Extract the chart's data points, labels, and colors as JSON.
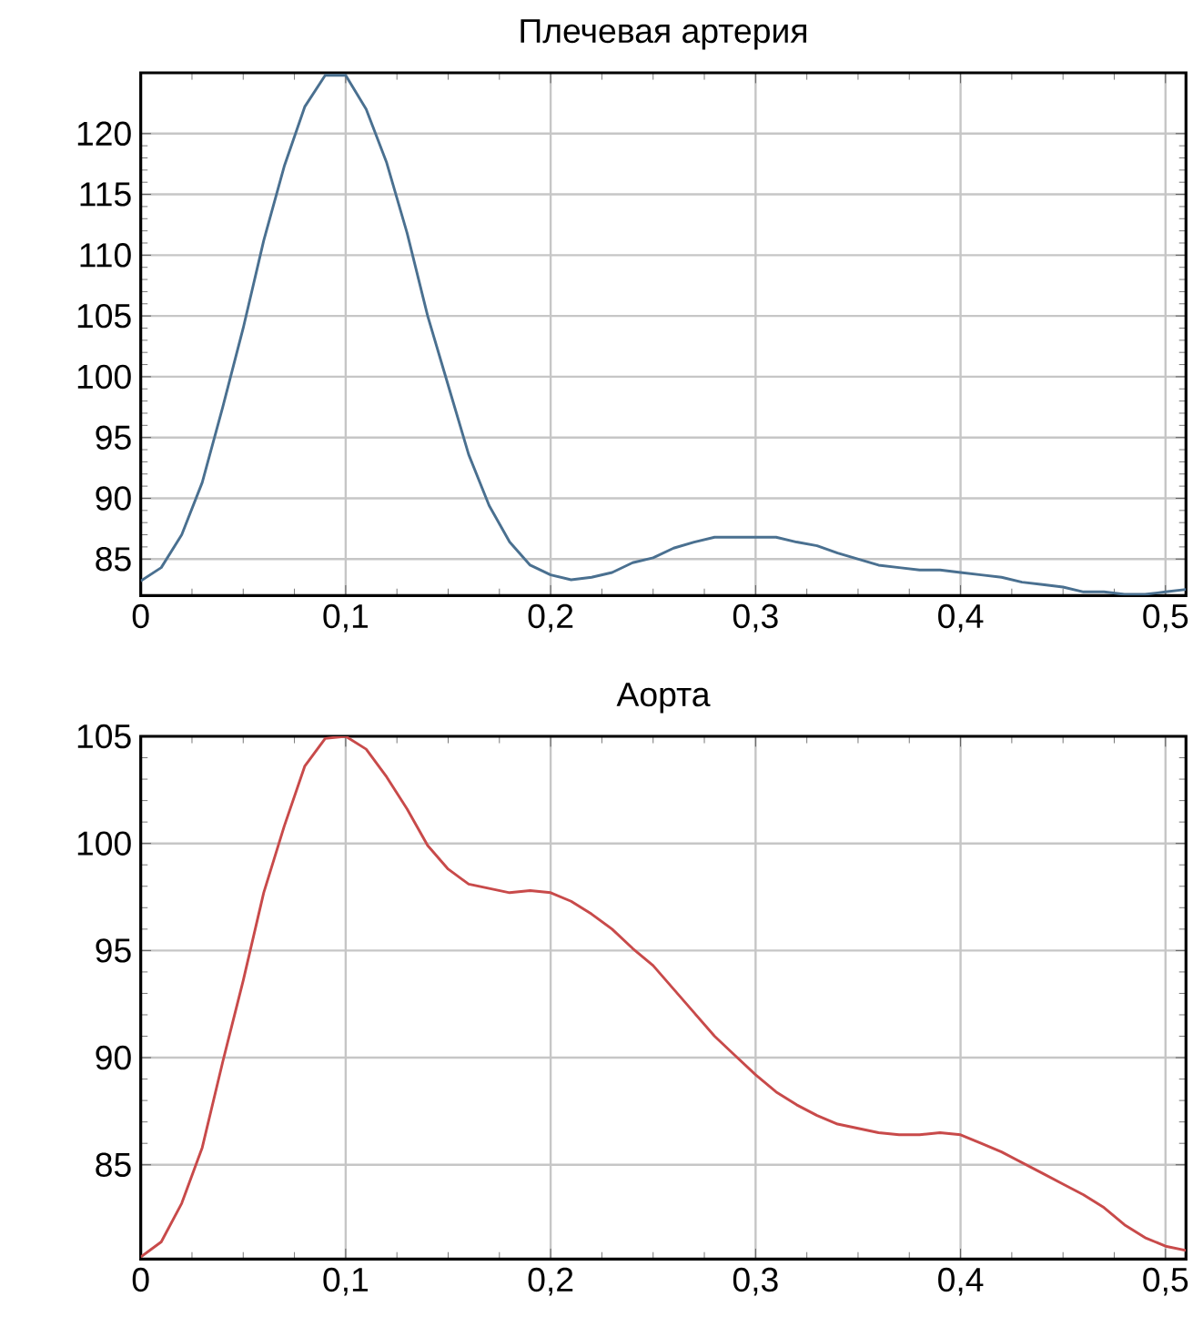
{
  "chart_data": [
    {
      "type": "line",
      "title": "Плечевая артерия",
      "grid": true,
      "marker": "none",
      "x": [
        0,
        0.01,
        0.02,
        0.03,
        0.04,
        0.05,
        0.06,
        0.07,
        0.08,
        0.09,
        0.1,
        0.11,
        0.12,
        0.13,
        0.14,
        0.15,
        0.16,
        0.17,
        0.18,
        0.19,
        0.2,
        0.21,
        0.22,
        0.23,
        0.24,
        0.25,
        0.26,
        0.27,
        0.28,
        0.29,
        0.3,
        0.31,
        0.32,
        0.33,
        0.34,
        0.35,
        0.36,
        0.37,
        0.38,
        0.39,
        0.4,
        0.41,
        0.42,
        0.43,
        0.44,
        0.45,
        0.46,
        0.47,
        0.48,
        0.49,
        0.5,
        0.51
      ],
      "series": [
        {
          "color": "#4a7090",
          "values": [
            83.2,
            84.3,
            87,
            91.3,
            97.5,
            104,
            111.2,
            117.3,
            122.2,
            124.8,
            124.8,
            122,
            117.6,
            111.8,
            105,
            99.3,
            93.6,
            89.4,
            86.4,
            84.5,
            83.7,
            83.3,
            83.5,
            83.9,
            84.7,
            85.1,
            85.9,
            86.4,
            86.8,
            86.8,
            86.8,
            86.8,
            86.4,
            86.1,
            85.5,
            85,
            84.5,
            84.3,
            84.1,
            84.1,
            83.9,
            83.7,
            83.5,
            83.1,
            82.9,
            82.7,
            82.3,
            82.3,
            82.1,
            82.1,
            82.3,
            82.5
          ]
        }
      ],
      "xlim": [
        0,
        0.51
      ],
      "ylim": [
        82,
        125
      ],
      "xticks": [
        0,
        {
          "value": 0.1,
          "label": "0,1"
        },
        {
          "value": 0.2,
          "label": "0,2"
        },
        {
          "value": 0.3,
          "label": "0,3"
        },
        {
          "value": 0.4,
          "label": "0,4"
        },
        {
          "value": 0.5,
          "label": "0,5"
        }
      ],
      "yticks": [
        85,
        90,
        95,
        100,
        105,
        110,
        115,
        120
      ]
    },
    {
      "type": "line",
      "title": "Аорта",
      "grid": true,
      "marker": "none",
      "x": [
        0,
        0.01,
        0.02,
        0.03,
        0.04,
        0.05,
        0.06,
        0.07,
        0.08,
        0.09,
        0.1,
        0.11,
        0.12,
        0.13,
        0.14,
        0.15,
        0.16,
        0.17,
        0.18,
        0.19,
        0.2,
        0.21,
        0.22,
        0.23,
        0.24,
        0.25,
        0.26,
        0.27,
        0.28,
        0.29,
        0.3,
        0.31,
        0.32,
        0.33,
        0.34,
        0.35,
        0.36,
        0.37,
        0.38,
        0.39,
        0.4,
        0.41,
        0.42,
        0.43,
        0.44,
        0.45,
        0.46,
        0.47,
        0.48,
        0.49,
        0.5,
        0.51
      ],
      "series": [
        {
          "color": "#c84a4a",
          "values": [
            80.7,
            81.4,
            83.2,
            85.8,
            89.8,
            93.6,
            97.7,
            100.8,
            103.6,
            104.9,
            105,
            104.4,
            103.1,
            101.6,
            99.9,
            98.8,
            98.1,
            97.9,
            97.7,
            97.8,
            97.7,
            97.3,
            96.7,
            96,
            95.1,
            94.3,
            93.2,
            92.1,
            91,
            90.1,
            89.2,
            88.4,
            87.8,
            87.3,
            86.9,
            86.7,
            86.5,
            86.4,
            86.4,
            86.5,
            86.4,
            86,
            85.6,
            85.1,
            84.6,
            84.1,
            83.6,
            83,
            82.2,
            81.6,
            81.2,
            81
          ]
        }
      ],
      "xlim": [
        0,
        0.51
      ],
      "ylim": [
        80.6,
        105
      ],
      "xticks": [
        0,
        {
          "value": 0.1,
          "label": "0,1"
        },
        {
          "value": 0.2,
          "label": "0,2"
        },
        {
          "value": 0.3,
          "label": "0,3"
        },
        {
          "value": 0.4,
          "label": "0,4"
        },
        {
          "value": 0.5,
          "label": "0,5"
        }
      ],
      "yticks": [
        85,
        90,
        95,
        100,
        105
      ]
    }
  ]
}
